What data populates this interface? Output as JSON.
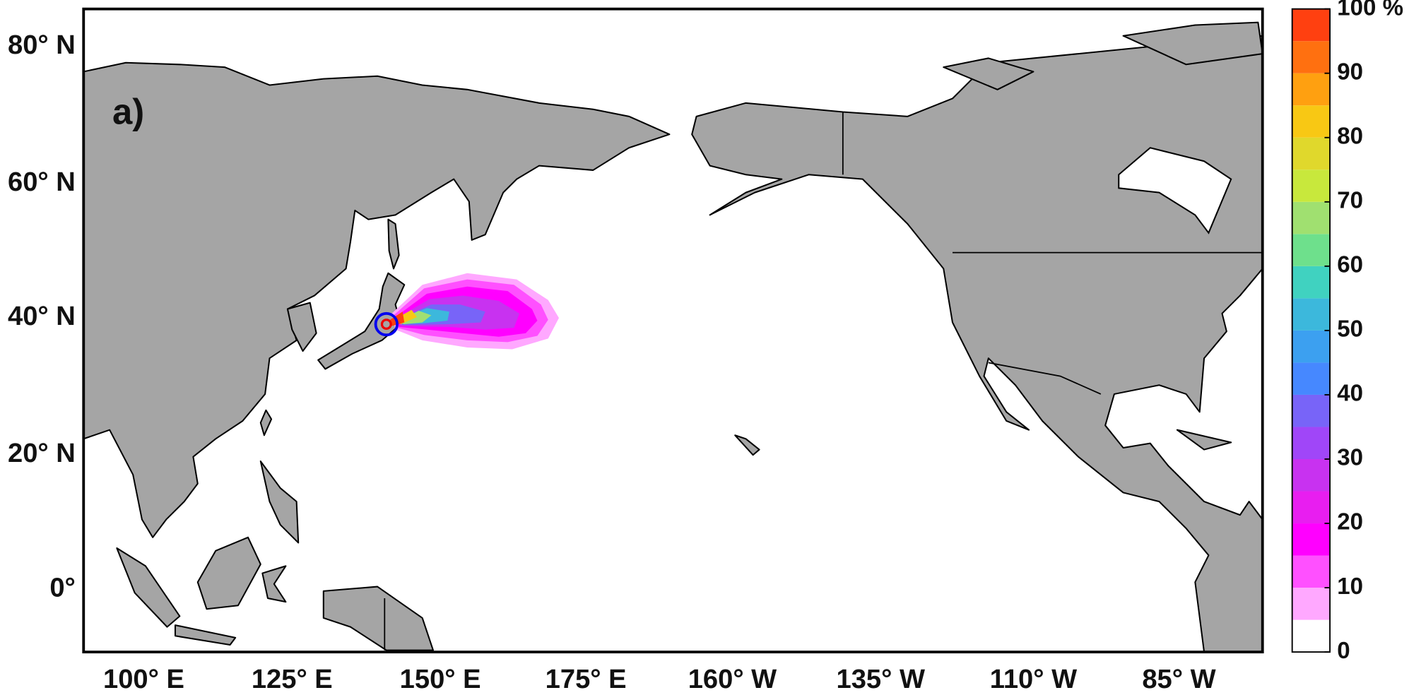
{
  "map": {
    "panel_label": "a)",
    "lat_labels": [
      "80° N",
      "60° N",
      "40° N",
      "20° N",
      "0°"
    ],
    "lon_labels": [
      "100° E",
      "125° E",
      "150° E",
      "175° E",
      "160° W",
      "135° W",
      "110° W",
      "85° W"
    ],
    "colorbar": {
      "ticks": [
        0,
        10,
        20,
        30,
        40,
        50,
        60,
        70,
        80,
        90,
        {
          "value": 100,
          "label": "100 %"
        }
      ],
      "bounds": [
        0,
        5,
        10,
        15,
        20,
        25,
        30,
        35,
        40,
        45,
        50,
        55,
        60,
        65,
        70,
        75,
        80,
        85,
        90,
        95,
        100
      ],
      "colors": [
        "#ffffff",
        "#ffa8ff",
        "#ff50ff",
        "#ff00ff",
        "#e81ef0",
        "#c832f0",
        "#a046f8",
        "#7864f8",
        "#4688ff",
        "#3ca0f0",
        "#3cb8dc",
        "#40d2c0",
        "#6ee08c",
        "#a0e070",
        "#c8e83c",
        "#e0d82c",
        "#f8c814",
        "#ffa010",
        "#ff7010",
        "#ff4010"
      ]
    }
  }
}
